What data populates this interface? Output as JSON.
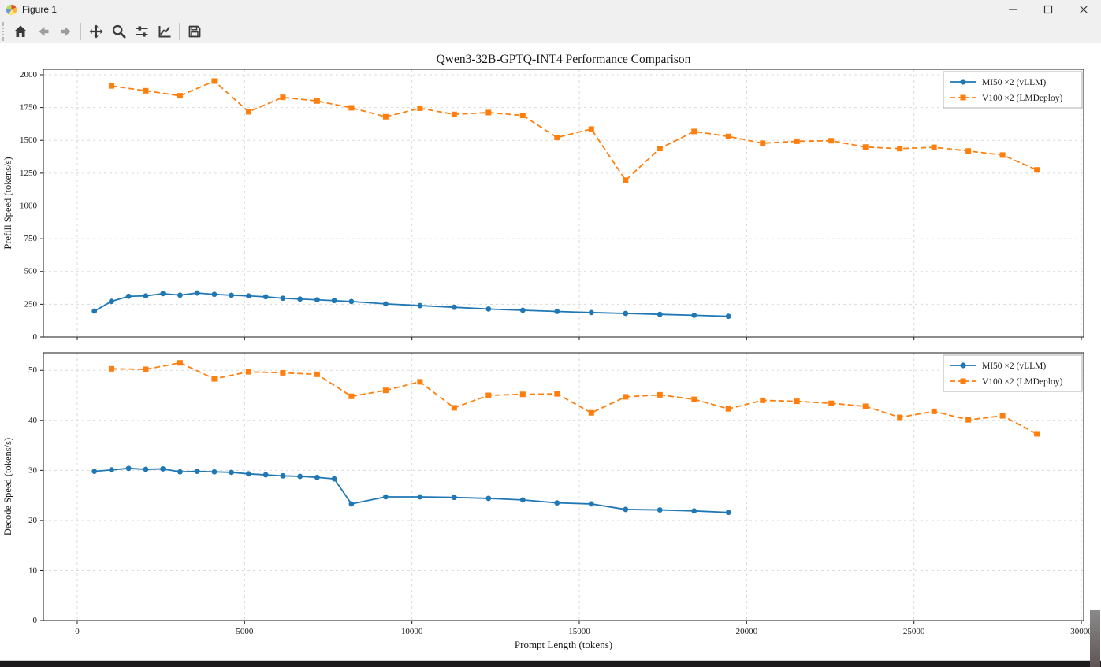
{
  "window": {
    "title": "Figure 1",
    "controls": [
      "minimize",
      "maximize",
      "close"
    ]
  },
  "toolbar": {
    "icons": [
      "home-icon",
      "back-icon",
      "forward-icon",
      "pan-icon",
      "zoom-icon",
      "configure-subplots-icon",
      "edit-axes-icon",
      "save-icon"
    ]
  },
  "figure": {
    "title": "Qwen3-32B-GPTQ-INT4 Performance Comparison"
  },
  "colors": {
    "mi50": "#1f77b4",
    "v100": "#ff7f0e",
    "grid": "#d9d9d9",
    "spine": "#1a1a1a",
    "text": "#1a1a1a",
    "legend_border": "#b0b0b0"
  },
  "chart_data": [
    {
      "type": "line",
      "title": "Qwen3-32B-GPTQ-INT4 Performance Comparison",
      "xlabel": "",
      "ylabel": "Prefill Speed (tokens/s)",
      "xlim": [
        -1012,
        30070
      ],
      "ylim": [
        0,
        2042
      ],
      "xticks": [
        0,
        5000,
        10000,
        15000,
        20000,
        25000,
        30000
      ],
      "yticks": [
        0,
        250,
        500,
        750,
        1000,
        1250,
        1500,
        1750,
        2000
      ],
      "show_xticklabels": false,
      "grid": true,
      "legend_position": "upper right",
      "series": [
        {
          "name": "MI50 ×2 (vLLM)",
          "color": "#1f77b4",
          "line": "solid",
          "marker": "circle",
          "x": [
            512,
            1024,
            1536,
            2048,
            2560,
            3072,
            3584,
            4096,
            4608,
            5120,
            5632,
            6144,
            6656,
            7168,
            7680,
            8192,
            9216,
            10240,
            11264,
            12288,
            13312,
            14336,
            15360,
            16384,
            17408,
            18432,
            19456
          ],
          "y": [
            198,
            272,
            311,
            314,
            331,
            320,
            336,
            326,
            319,
            314,
            307,
            296,
            290,
            284,
            278,
            271,
            253,
            240,
            227,
            214,
            204,
            195,
            187,
            180,
            173,
            166,
            158
          ]
        },
        {
          "name": "V100 ×2 (LMDeploy)",
          "color": "#ff7f0e",
          "line": "dashed",
          "marker": "square",
          "x": [
            1024,
            2048,
            3072,
            4096,
            5120,
            6144,
            7168,
            8192,
            9216,
            10240,
            11264,
            12288,
            13312,
            14336,
            15360,
            16384,
            17408,
            18432,
            19456,
            20480,
            21504,
            22528,
            23552,
            24576,
            25600,
            26624,
            27648,
            28672
          ],
          "y": [
            1915,
            1878,
            1840,
            1952,
            1718,
            1828,
            1800,
            1748,
            1680,
            1745,
            1698,
            1712,
            1690,
            1522,
            1586,
            1196,
            1438,
            1568,
            1530,
            1478,
            1493,
            1497,
            1449,
            1437,
            1447,
            1419,
            1388,
            1275
          ]
        }
      ]
    },
    {
      "type": "line",
      "title": "",
      "xlabel": "Prompt Length (tokens)",
      "ylabel": "Decode Speed (tokens/s)",
      "xlim": [
        -1012,
        30070
      ],
      "ylim": [
        0,
        53.5
      ],
      "xticks": [
        0,
        5000,
        10000,
        15000,
        20000,
        25000,
        30000
      ],
      "yticks": [
        0,
        10,
        20,
        30,
        40,
        50
      ],
      "show_xticklabels": true,
      "grid": true,
      "legend_position": "upper right",
      "series": [
        {
          "name": "MI50 ×2 (vLLM)",
          "color": "#1f77b4",
          "line": "solid",
          "marker": "circle",
          "x": [
            512,
            1024,
            1536,
            2048,
            2560,
            3072,
            3584,
            4096,
            4608,
            5120,
            5632,
            6144,
            6656,
            7168,
            7680,
            8192,
            9216,
            10240,
            11264,
            12288,
            13312,
            14336,
            15360,
            16384,
            17408,
            18432,
            19456
          ],
          "y": [
            29.8,
            30.1,
            30.4,
            30.2,
            30.3,
            29.7,
            29.8,
            29.7,
            29.6,
            29.3,
            29.1,
            28.9,
            28.8,
            28.6,
            28.3,
            23.3,
            24.7,
            24.7,
            24.6,
            24.4,
            24.1,
            23.5,
            23.3,
            22.2,
            22.1,
            21.9,
            21.6
          ]
        },
        {
          "name": "V100 ×2 (LMDeploy)",
          "color": "#ff7f0e",
          "line": "dashed",
          "marker": "square",
          "x": [
            1024,
            2048,
            3072,
            4096,
            5120,
            6144,
            7168,
            8192,
            9216,
            10240,
            11264,
            12288,
            13312,
            14336,
            15360,
            16384,
            17408,
            18432,
            19456,
            20480,
            21504,
            22528,
            23552,
            24576,
            25600,
            26624,
            27648,
            28672
          ],
          "y": [
            50.3,
            50.2,
            51.5,
            48.3,
            49.7,
            49.5,
            49.2,
            44.8,
            46.0,
            47.7,
            42.5,
            45.0,
            45.2,
            45.3,
            41.5,
            44.7,
            45.1,
            44.2,
            42.3,
            44.0,
            43.8,
            43.4,
            42.8,
            40.6,
            41.8,
            40.1,
            40.9,
            37.3
          ]
        }
      ]
    }
  ]
}
